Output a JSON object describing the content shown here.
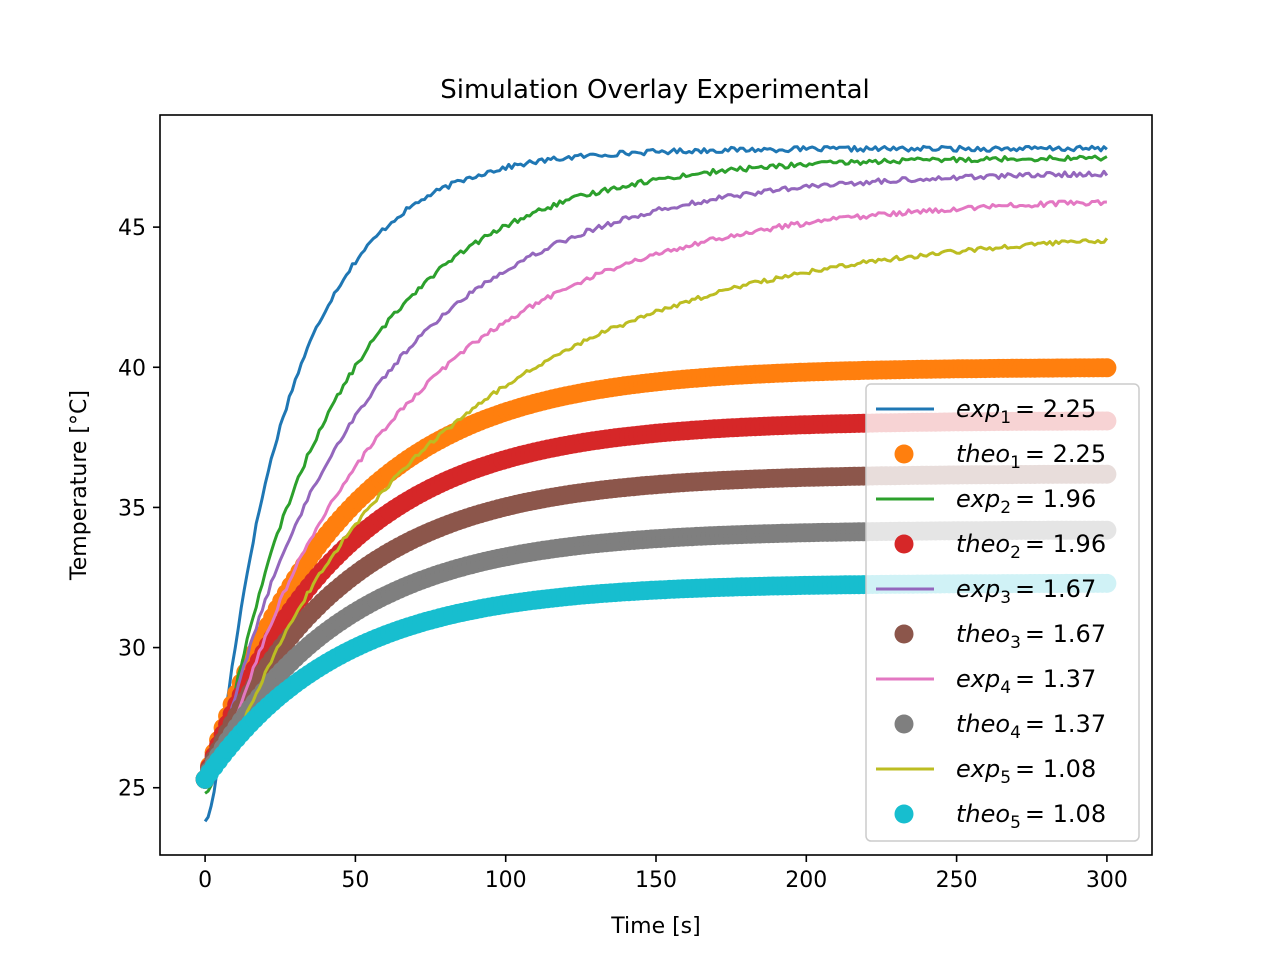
{
  "chart_data": {
    "type": "line",
    "title": "Simulation Overlay Experimental",
    "xlabel": "Time [s]",
    "ylabel": "Temperature [°C]",
    "xlim": [
      -15,
      315
    ],
    "ylim": [
      22.6,
      49.0
    ],
    "xticks": [
      0,
      50,
      100,
      150,
      200,
      250,
      300
    ],
    "xtick_labels": [
      "0",
      "50",
      "100",
      "150",
      "200",
      "250",
      "300"
    ],
    "yticks": [
      25,
      30,
      35,
      40,
      45
    ],
    "ytick_labels": [
      "25",
      "30",
      "35",
      "40",
      "45"
    ],
    "grid": false,
    "legend_position": "lower-right",
    "series": [
      {
        "name": "exp_1 = 2.25",
        "label_base": "exp",
        "label_sub": "1",
        "label_value": "= 2.25",
        "kind": "line",
        "color": "#1f77b4",
        "start": 23.8,
        "final": 47.8,
        "tau": 28,
        "t0": 0,
        "ramp": 5,
        "noise": 0.09
      },
      {
        "name": "theo_1 = 2.25",
        "label_base": "theo",
        "label_sub": "1",
        "label_value": "= 2.25",
        "kind": "marker",
        "color": "#ff7f0e",
        "start": 25.3,
        "final": 40.0,
        "tau": 45,
        "t0": 0
      },
      {
        "name": "exp_2 = 1.96",
        "label_base": "exp",
        "label_sub": "2",
        "label_value": "= 1.96",
        "kind": "line",
        "color": "#2ca02c",
        "start": 24.8,
        "final": 47.5,
        "tau": 45,
        "t0": 0,
        "ramp": 6,
        "noise": 0.09
      },
      {
        "name": "theo_2 = 1.96",
        "label_base": "theo",
        "label_sub": "2",
        "label_value": "= 1.96",
        "kind": "marker",
        "color": "#d62728",
        "start": 25.3,
        "final": 38.1,
        "tau": 45,
        "t0": 0
      },
      {
        "name": "exp_3 = 1.67",
        "label_base": "exp",
        "label_sub": "3",
        "label_value": "= 1.67",
        "kind": "line",
        "color": "#9467bd",
        "start": 25.3,
        "final": 47.0,
        "tau": 55,
        "t0": 0,
        "ramp": 6,
        "noise": 0.09
      },
      {
        "name": "theo_3 = 1.67",
        "label_base": "theo",
        "label_sub": "3",
        "label_value": "= 1.67",
        "kind": "marker",
        "color": "#8c564b",
        "start": 25.3,
        "final": 36.2,
        "tau": 45,
        "t0": 0
      },
      {
        "name": "exp_4 = 1.37",
        "label_base": "exp",
        "label_sub": "4",
        "label_value": "= 1.37",
        "kind": "line",
        "color": "#e377c2",
        "start": 25.3,
        "final": 46.1,
        "tau": 65,
        "t0": 0,
        "ramp": 8,
        "noise": 0.09
      },
      {
        "name": "theo_4 = 1.37",
        "label_base": "theo",
        "label_sub": "4",
        "label_value": "= 1.37",
        "kind": "marker",
        "color": "#7f7f7f",
        "start": 25.3,
        "final": 34.2,
        "tau": 45,
        "t0": 0
      },
      {
        "name": "exp_5 = 1.08",
        "label_base": "exp",
        "label_sub": "5",
        "label_value": "= 1.08",
        "kind": "line",
        "color": "#bcbd22",
        "start": 25.3,
        "final": 45.0,
        "tau": 80,
        "t0": 0,
        "ramp": 10,
        "noise": 0.08
      },
      {
        "name": "theo_5 = 1.08",
        "label_base": "theo",
        "label_sub": "5",
        "label_value": "= 1.08",
        "kind": "marker",
        "color": "#17becf",
        "start": 25.3,
        "final": 32.3,
        "tau": 45,
        "t0": 0
      }
    ]
  }
}
